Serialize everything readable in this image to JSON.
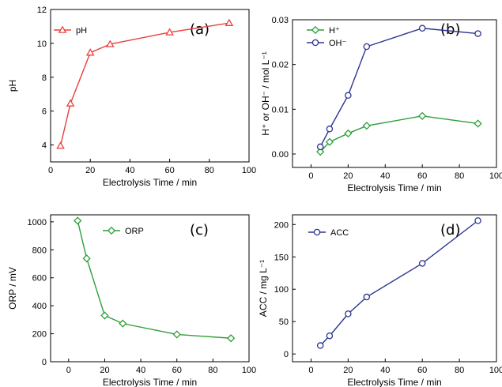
{
  "chart_data": [
    {
      "id": "a",
      "type": "line",
      "panel_label": "(a)",
      "xlabel": "Electrolysis Time / min",
      "ylabel": "pH",
      "xlim": [
        0,
        100
      ],
      "ylim": [
        3,
        12
      ],
      "xticks": [
        0,
        20,
        40,
        60,
        80,
        100
      ],
      "yticks": [
        4,
        6,
        8,
        10,
        12
      ],
      "legend_position": "top-left",
      "series": [
        {
          "name": "pH",
          "marker": "triangle",
          "color": "#e8413c",
          "x": [
            5,
            10,
            20,
            30,
            60,
            90
          ],
          "y": [
            3.95,
            6.45,
            9.45,
            9.95,
            10.65,
            11.2
          ]
        }
      ]
    },
    {
      "id": "b",
      "type": "line",
      "panel_label": "(b)",
      "xlabel": "Electrolysis Time / min",
      "ylabel": "H⁺ or OH⁻ / mol L⁻¹",
      "xlim": [
        -10,
        100
      ],
      "ylim": [
        -0.003,
        0.03
      ],
      "xticks": [
        0,
        20,
        40,
        60,
        80,
        100
      ],
      "yticks": [
        0.0,
        0.01,
        0.02,
        0.03
      ],
      "ytick_labels": [
        "0.00",
        "0.01",
        "0.02",
        "0.03"
      ],
      "legend_position": "top-left",
      "series": [
        {
          "name": "H⁺",
          "marker": "diamond",
          "color": "#2e9e3a",
          "x": [
            5,
            10,
            20,
            30,
            60,
            90
          ],
          "y": [
            0.0005,
            0.0027,
            0.0046,
            0.0063,
            0.0085,
            0.0068
          ]
        },
        {
          "name": "OH⁻",
          "marker": "circle",
          "color": "#2b3590",
          "x": [
            5,
            10,
            20,
            30,
            60,
            90
          ],
          "y": [
            0.0016,
            0.0056,
            0.0131,
            0.024,
            0.0281,
            0.0269
          ]
        }
      ]
    },
    {
      "id": "c",
      "type": "line",
      "panel_label": "(c)",
      "xlabel": "Electrolysis Time / min",
      "ylabel": "ORP / mV",
      "xlim": [
        -10,
        100
      ],
      "ylim": [
        0,
        1050
      ],
      "xticks": [
        0,
        20,
        40,
        60,
        80,
        100
      ],
      "yticks": [
        0,
        200,
        400,
        600,
        800,
        1000
      ],
      "legend_position": "top-center",
      "series": [
        {
          "name": "ORP",
          "marker": "diamond",
          "color": "#2e9e3a",
          "x": [
            5,
            10,
            20,
            30,
            60,
            90
          ],
          "y": [
            1008,
            738,
            330,
            273,
            195,
            168
          ]
        }
      ]
    },
    {
      "id": "d",
      "type": "line",
      "panel_label": "(d)",
      "xlabel": "Electrolysis Time / min",
      "ylabel": "ACC / mg L⁻¹",
      "xlim": [
        -10,
        100
      ],
      "ylim": [
        -12,
        215
      ],
      "xticks": [
        0,
        20,
        40,
        60,
        80,
        100
      ],
      "yticks": [
        0,
        50,
        100,
        150,
        200
      ],
      "legend_position": "top-left",
      "series": [
        {
          "name": "ACC",
          "marker": "circle",
          "color": "#2b3590",
          "x": [
            5,
            10,
            20,
            30,
            60,
            90
          ],
          "y": [
            13,
            28,
            62,
            88,
            140,
            206
          ]
        }
      ]
    }
  ]
}
